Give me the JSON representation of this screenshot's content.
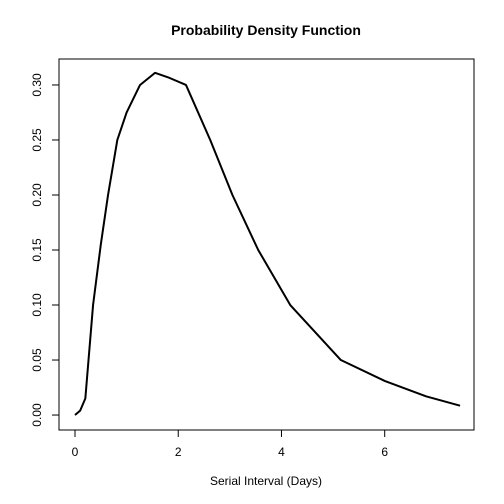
{
  "chart_data": {
    "type": "line",
    "title": "Probability Density Function",
    "x_label": "Serial Interval (Days)",
    "series": [
      {
        "color": "#000000",
        "x": [
          0,
          0.1,
          0.2,
          0.35,
          0.5,
          0.64,
          0.82,
          1.0,
          1.26,
          1.55,
          1.8,
          2.15,
          2.62,
          3.05,
          3.55,
          4.17,
          4.6,
          5.15,
          6.0,
          6.8,
          7.46
        ],
        "values": [
          0,
          0.004,
          0.015,
          0.1,
          0.155,
          0.2,
          0.25,
          0.275,
          0.3,
          0.311,
          0.307,
          0.3,
          0.25,
          0.2,
          0.15,
          0.1,
          0.078,
          0.05,
          0.031,
          0.017,
          0.0085
        ]
      }
    ],
    "xlim": [
      -0.31,
      7.73
    ],
    "xticks": [
      0,
      2,
      4,
      6
    ],
    "ylim": [
      -0.0136,
      0.3236
    ],
    "yticks": [
      {
        "value": 0,
        "label": "0.00"
      },
      {
        "value": 0.05,
        "label": "0.05"
      },
      {
        "value": 0.1,
        "label": "0.10"
      },
      {
        "value": 0.15,
        "label": "0.15"
      },
      {
        "value": 0.2,
        "label": "0.20"
      },
      {
        "value": 0.25,
        "label": "0.25"
      },
      {
        "value": 0.3,
        "label": "0.30"
      }
    ]
  }
}
